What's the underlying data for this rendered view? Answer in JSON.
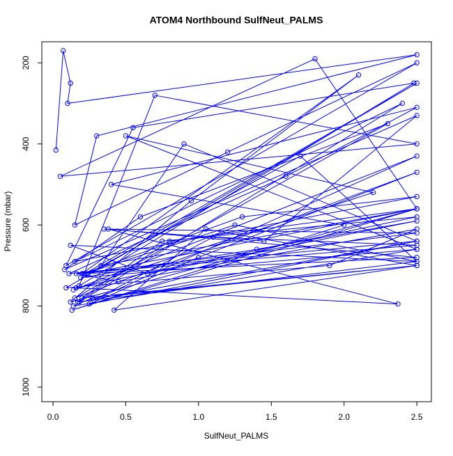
{
  "chart_data": {
    "type": "line",
    "title": "ATOM4 Northbound SulfNeut_PALMS",
    "x_label": "SulfNeut_PALMS",
    "y_label": "Pressure (mbar)",
    "color": "#0000ff",
    "marker": "circle",
    "xlim": [
      -0.077,
      2.6
    ],
    "ylim": [
      1036,
      148
    ],
    "xticks": [
      {
        "value": 0,
        "label": "0.0"
      },
      0.5,
      {
        "value": 1,
        "label": "1.0"
      },
      1.5,
      {
        "value": 2,
        "label": "2.0"
      },
      2.5
    ],
    "yticks": [
      200,
      400,
      600,
      800,
      1000
    ],
    "x": [
      0.02,
      0.07,
      0.12,
      0.1,
      2.5,
      0.3,
      0.15,
      1.2,
      2.5,
      0.09,
      0.55,
      2.48,
      0.18,
      0.7,
      2.5,
      0.05,
      1.8,
      2.5,
      0.12,
      0.95,
      2.1,
      0.2,
      2.5,
      0.35,
      1.45,
      2.5,
      0.08,
      0.6,
      2.3,
      0.15,
      2.5,
      1.0,
      0.25,
      2.5,
      0.11,
      1.6,
      2.5,
      0.4,
      2.0,
      0.13,
      2.5,
      0.8,
      0.17,
      2.5,
      1.25,
      0.22,
      2.5,
      0.09,
      1.9,
      2.5,
      0.45,
      0.16,
      2.5,
      1.1,
      0.28,
      2.5,
      0.14,
      2.2,
      0.5,
      2.5,
      0.19,
      1.4,
      2.5,
      0.65,
      0.12,
      2.5,
      1.7,
      0.24,
      2.5,
      0.33,
      0.9,
      2.5,
      0.18,
      2.4,
      0.15,
      2.5,
      1.3,
      0.21,
      2.5,
      0.38,
      2.37,
      0.16,
      2.5,
      0.75,
      0.2,
      2.5,
      0.42,
      1.05,
      2.5,
      0.27,
      0.14,
      2.5
    ],
    "values": [
      415,
      170,
      250,
      300,
      180,
      380,
      600,
      420,
      200,
      700,
      360,
      250,
      750,
      280,
      400,
      480,
      190,
      560,
      790,
      540,
      230,
      720,
      620,
      610,
      640,
      330,
      710,
      580,
      350,
      780,
      470,
      680,
      795,
      640,
      720,
      480,
      310,
      500,
      600,
      810,
      560,
      640,
      790,
      690,
      600,
      720,
      250,
      755,
      700,
      610,
      740,
      720,
      650,
      630,
      785,
      430,
      760,
      520,
      380,
      660,
      730,
      660,
      590,
      720,
      650,
      690,
      430,
      720,
      560,
      700,
      400,
      640,
      790,
      300,
      690,
      530,
      580,
      720,
      680,
      610,
      795,
      755,
      580,
      640,
      780,
      700,
      810,
      610,
      700,
      780,
      800,
      660
    ]
  }
}
